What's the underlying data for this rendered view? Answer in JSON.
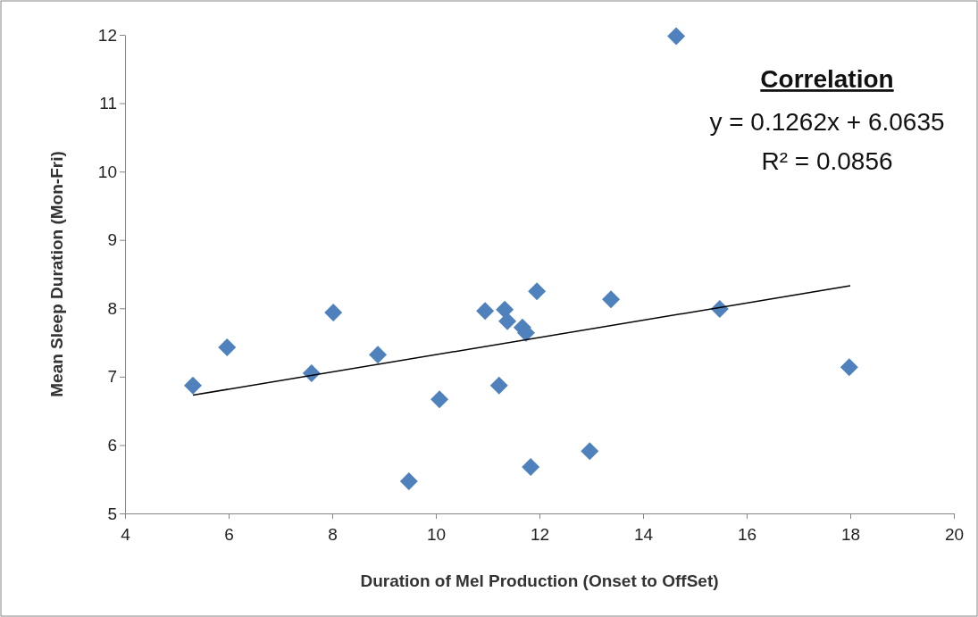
{
  "chart_data": {
    "type": "scatter",
    "xlabel": "Duration of Mel Production (Onset to OffSet)",
    "ylabel": "Mean Sleep Duration (Mon-Fri)",
    "xlim": [
      4,
      20
    ],
    "xticks": [
      4,
      6,
      8,
      10,
      12,
      14,
      16,
      18,
      20
    ],
    "ylim": [
      5,
      12
    ],
    "yticks": [
      5,
      6,
      7,
      8,
      9,
      10,
      11,
      12
    ],
    "grid": false,
    "annotations": [
      "Correlation",
      "y = 0.1262x + 6.0635",
      "R² = 0.0856"
    ],
    "series": [
      {
        "marker": "diamond",
        "color": "#4f81bd",
        "x": [
          5.31,
          5.97,
          7.6,
          8.02,
          8.88,
          9.48,
          10.07,
          10.95,
          11.33,
          11.38,
          11.22,
          11.67,
          11.74,
          11.95,
          11.83,
          12.97,
          13.38,
          14.64,
          15.48,
          17.98
        ],
        "values": [
          6.87,
          7.43,
          7.05,
          7.94,
          7.32,
          5.47,
          6.67,
          7.96,
          7.98,
          7.81,
          6.87,
          7.72,
          7.64,
          8.25,
          5.68,
          5.91,
          8.13,
          11.98,
          7.99,
          7.14
        ]
      },
      {
        "type": "line",
        "color": "#000000",
        "line_style": "solid",
        "x": [
          5.31,
          18
        ],
        "values": [
          6.73,
          8.33
        ]
      }
    ]
  }
}
